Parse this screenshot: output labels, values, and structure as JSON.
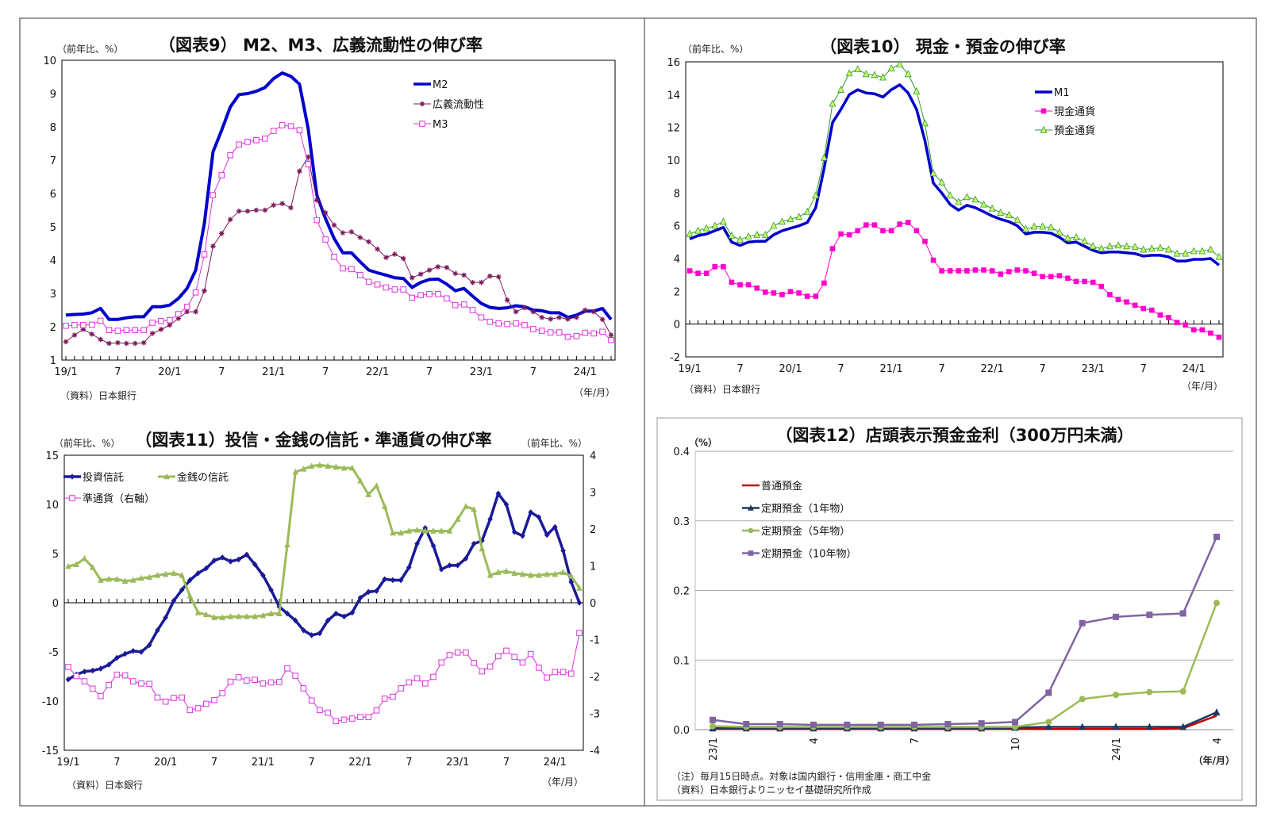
{
  "chart_data": [
    {
      "type": "line",
      "title": "（図表9） M2、M3、広義流動性の伸び率",
      "ylabel": "（前年比、%）",
      "xlabel": "（年/月）",
      "source": "（資料）日本銀行",
      "frequency": "monthly",
      "x_range": [
        "19/1",
        "24/4"
      ],
      "x_tick_labels": [
        "19/1",
        "7",
        "20/1",
        "7",
        "21/1",
        "7",
        "22/1",
        "7",
        "23/1",
        "7",
        "24/1"
      ],
      "ylim": [
        1,
        10
      ],
      "y_ticks": [
        1,
        2,
        3,
        4,
        5,
        6,
        7,
        8,
        9,
        10
      ],
      "legend": "top-right",
      "series": [
        {
          "name": "M2",
          "color": "#0000cc",
          "marker": "none",
          "values": [
            2.35,
            2.37,
            2.38,
            2.42,
            2.55,
            2.22,
            2.22,
            2.27,
            2.3,
            2.3,
            2.6,
            2.6,
            2.65,
            2.85,
            3.15,
            3.7,
            5.1,
            7.25,
            7.9,
            8.6,
            8.97,
            9.0,
            9.07,
            9.18,
            9.45,
            9.62,
            9.52,
            9.28,
            7.95,
            5.95,
            5.25,
            4.65,
            4.22,
            4.22,
            3.95,
            3.7,
            3.62,
            3.55,
            3.47,
            3.45,
            3.18,
            3.33,
            3.42,
            3.43,
            3.28,
            3.08,
            3.15,
            2.92,
            2.7,
            2.58,
            2.55,
            2.57,
            2.63,
            2.6,
            2.5,
            2.48,
            2.42,
            2.42,
            2.28,
            2.35,
            2.47,
            2.47,
            2.55,
            2.22
          ]
        },
        {
          "name": "広義流動性",
          "color": "#7a1a5c",
          "marker": "star",
          "values": [
            1.55,
            1.75,
            1.92,
            1.78,
            1.62,
            1.5,
            1.52,
            1.5,
            1.5,
            1.52,
            1.8,
            1.92,
            2.05,
            2.25,
            2.45,
            2.45,
            3.08,
            4.42,
            4.8,
            5.22,
            5.47,
            5.47,
            5.5,
            5.5,
            5.65,
            5.7,
            5.57,
            6.67,
            7.1,
            5.8,
            5.42,
            5.05,
            4.82,
            4.85,
            4.68,
            4.55,
            4.33,
            4.08,
            4.18,
            4.05,
            3.47,
            3.58,
            3.7,
            3.8,
            3.78,
            3.6,
            3.55,
            3.33,
            3.33,
            3.52,
            3.5,
            2.8,
            2.45,
            2.57,
            2.45,
            2.28,
            2.23,
            2.28,
            2.23,
            2.28,
            2.5,
            2.45,
            2.22,
            1.75
          ]
        },
        {
          "name": "M3",
          "color": "#dd33dd",
          "marker": "square-open",
          "values": [
            2.03,
            2.05,
            2.05,
            2.06,
            2.18,
            1.9,
            1.88,
            1.9,
            1.9,
            1.9,
            2.12,
            2.17,
            2.2,
            2.38,
            2.6,
            3.03,
            4.17,
            5.95,
            6.55,
            7.15,
            7.47,
            7.55,
            7.6,
            7.65,
            7.88,
            8.05,
            8.02,
            7.9,
            6.88,
            5.2,
            4.62,
            4.1,
            3.75,
            3.73,
            3.55,
            3.35,
            3.27,
            3.18,
            3.12,
            3.12,
            2.87,
            2.95,
            2.98,
            2.98,
            2.85,
            2.65,
            2.67,
            2.5,
            2.28,
            2.15,
            2.1,
            2.08,
            2.1,
            2.05,
            1.93,
            1.88,
            1.83,
            1.83,
            1.7,
            1.72,
            1.82,
            1.8,
            1.85,
            1.6
          ]
        }
      ]
    },
    {
      "type": "line",
      "title": "（図表10） 現金・預金の伸び率",
      "ylabel": "（前年比、%）",
      "xlabel": "（年/月）",
      "source": "（資料）日本銀行",
      "frequency": "monthly",
      "x_range": [
        "19/1",
        "24/4"
      ],
      "x_tick_labels": [
        "19/1",
        "7",
        "20/1",
        "7",
        "21/1",
        "7",
        "22/1",
        "7",
        "23/1",
        "7",
        "24/1"
      ],
      "ylim": [
        -2,
        16
      ],
      "y_ticks": [
        -2,
        0,
        2,
        4,
        6,
        8,
        10,
        12,
        14,
        16
      ],
      "legend": "top-right",
      "series": [
        {
          "name": "M1",
          "color": "#0000cc",
          "marker": "none",
          "values": [
            5.2,
            5.4,
            5.5,
            5.7,
            5.9,
            5.0,
            4.8,
            5.0,
            5.05,
            5.05,
            5.45,
            5.7,
            5.85,
            6.0,
            6.2,
            7.1,
            9.5,
            12.3,
            13.1,
            14.0,
            14.3,
            14.1,
            14.05,
            13.85,
            14.3,
            14.6,
            14.1,
            13.1,
            11.2,
            8.6,
            8.0,
            7.3,
            6.95,
            7.25,
            7.1,
            6.85,
            6.6,
            6.4,
            6.25,
            6.0,
            5.5,
            5.6,
            5.6,
            5.55,
            5.3,
            4.95,
            5.0,
            4.75,
            4.5,
            4.35,
            4.4,
            4.4,
            4.35,
            4.3,
            4.15,
            4.2,
            4.2,
            4.1,
            3.85,
            3.85,
            3.95,
            3.95,
            4.0,
            3.6
          ]
        },
        {
          "name": "現金通貨",
          "color": "#ff00cc",
          "marker": "square",
          "values": [
            3.25,
            3.1,
            3.1,
            3.5,
            3.5,
            2.55,
            2.4,
            2.4,
            2.2,
            1.95,
            1.9,
            1.8,
            1.98,
            1.9,
            1.7,
            1.7,
            2.5,
            4.6,
            5.5,
            5.45,
            5.7,
            6.05,
            6.05,
            5.7,
            5.7,
            6.1,
            6.2,
            5.7,
            5.05,
            3.9,
            3.25,
            3.25,
            3.25,
            3.25,
            3.3,
            3.3,
            3.25,
            3.05,
            3.2,
            3.3,
            3.25,
            3.1,
            2.9,
            2.9,
            2.95,
            2.8,
            2.6,
            2.6,
            2.55,
            2.3,
            1.8,
            1.5,
            1.35,
            1.15,
            0.95,
            0.85,
            0.55,
            0.4,
            0.1,
            -0.05,
            -0.35,
            -0.35,
            -0.55,
            -0.8
          ]
        },
        {
          "name": "預金通貨",
          "color": "#339933",
          "marker": "triangle-open",
          "values": [
            5.5,
            5.7,
            5.85,
            6.0,
            6.25,
            5.4,
            5.15,
            5.35,
            5.45,
            5.45,
            6.0,
            6.25,
            6.4,
            6.55,
            6.85,
            7.85,
            10.15,
            13.45,
            14.3,
            15.3,
            15.55,
            15.25,
            15.2,
            15.05,
            15.6,
            15.85,
            15.25,
            14.2,
            12.25,
            9.2,
            8.65,
            7.85,
            7.45,
            7.75,
            7.6,
            7.3,
            7.05,
            6.8,
            6.65,
            6.35,
            5.8,
            5.95,
            5.95,
            5.9,
            5.6,
            5.25,
            5.3,
            5.05,
            4.75,
            4.6,
            4.75,
            4.8,
            4.75,
            4.7,
            4.55,
            4.6,
            4.65,
            4.55,
            4.3,
            4.3,
            4.45,
            4.45,
            4.55,
            4.1
          ]
        }
      ]
    },
    {
      "type": "line",
      "title": "（図表11）投信・金銭の信託・準通貨の伸び率",
      "ylabel": "（前年比、%）",
      "ylabel_right": "（前年比、%）",
      "xlabel": "（年/月）",
      "source": "（資料）日本銀行",
      "frequency": "monthly",
      "x_range": [
        "19/1",
        "24/4"
      ],
      "x_tick_labels": [
        "19/1",
        "7",
        "20/1",
        "7",
        "21/1",
        "7",
        "22/1",
        "7",
        "23/1",
        "7",
        "24/1"
      ],
      "ylim": [
        -15,
        15
      ],
      "y_ticks": [
        -15,
        -10,
        -5,
        0,
        5,
        10,
        15
      ],
      "ylim_right": [
        -4,
        4
      ],
      "y_ticks_right": [
        -4,
        -3,
        -2,
        -1,
        0,
        1,
        2,
        3,
        4
      ],
      "negative_tick_color": "#cc0000",
      "legend": "top-left",
      "series": [
        {
          "name": "投資信託",
          "color": "#1a1a99",
          "marker": "diamond",
          "axis": "left",
          "values": [
            -7.8,
            -7.3,
            -7.0,
            -6.9,
            -6.7,
            -6.3,
            -5.6,
            -5.2,
            -4.9,
            -5.0,
            -4.3,
            -2.8,
            -1.5,
            0.2,
            1.3,
            2.3,
            3.0,
            3.5,
            4.3,
            4.6,
            4.2,
            4.4,
            4.9,
            3.9,
            2.8,
            1.3,
            -0.4,
            -1.1,
            -1.8,
            -2.8,
            -3.3,
            -3.1,
            -1.8,
            -1.1,
            -1.4,
            -1.0,
            0.5,
            1.1,
            1.2,
            2.4,
            2.3,
            2.3,
            3.6,
            6.0,
            7.6,
            5.8,
            3.4,
            3.8,
            3.8,
            4.5,
            6.0,
            6.3,
            8.5,
            11.1,
            10.0,
            7.2,
            6.8,
            9.2,
            8.7,
            6.9,
            7.7,
            5.3,
            2.1,
            0.0
          ]
        },
        {
          "name": "金銭の信託",
          "color": "#9bbb59",
          "marker": "triangle",
          "axis": "left",
          "values": [
            3.7,
            3.9,
            4.5,
            3.6,
            2.3,
            2.4,
            2.4,
            2.2,
            2.3,
            2.5,
            2.6,
            2.8,
            2.9,
            3.0,
            2.8,
            0.7,
            -1.0,
            -1.2,
            -1.5,
            -1.5,
            -1.4,
            -1.4,
            -1.4,
            -1.4,
            -1.3,
            -1.1,
            -1.1,
            5.9,
            13.3,
            13.6,
            13.9,
            14.0,
            13.9,
            13.8,
            13.7,
            13.7,
            12.4,
            11.0,
            11.9,
            9.8,
            7.1,
            7.1,
            7.3,
            7.4,
            7.3,
            7.3,
            7.3,
            7.3,
            8.5,
            9.8,
            9.5,
            5.5,
            2.8,
            3.1,
            3.2,
            3.0,
            2.9,
            2.8,
            2.8,
            2.9,
            2.9,
            3.1,
            2.7,
            1.5
          ]
        },
        {
          "name": "準通貨（右軸）",
          "color": "#dd33dd",
          "marker": "square-open",
          "axis": "right",
          "values": [
            -1.74,
            -1.99,
            -2.13,
            -2.33,
            -2.53,
            -2.23,
            -1.95,
            -1.97,
            -2.13,
            -2.19,
            -2.2,
            -2.57,
            -2.68,
            -2.58,
            -2.57,
            -2.91,
            -2.86,
            -2.74,
            -2.64,
            -2.45,
            -2.14,
            -2.02,
            -2.11,
            -2.09,
            -2.19,
            -2.16,
            -2.15,
            -1.78,
            -1.98,
            -2.32,
            -2.65,
            -2.91,
            -2.98,
            -3.21,
            -3.17,
            -3.14,
            -3.1,
            -3.1,
            -2.92,
            -2.6,
            -2.55,
            -2.32,
            -2.16,
            -2.05,
            -2.19,
            -2.01,
            -1.62,
            -1.42,
            -1.35,
            -1.35,
            -1.63,
            -1.86,
            -1.73,
            -1.45,
            -1.3,
            -1.47,
            -1.62,
            -1.39,
            -1.76,
            -2.03,
            -1.88,
            -1.88,
            -1.92,
            -0.82
          ]
        }
      ]
    },
    {
      "type": "line",
      "title": "（図表12）店頭表示預金金利（300万円未満）",
      "ylabel": "（%）",
      "xlabel": "（年/月）",
      "notes": [
        "（注）毎月15日時点。対象は国内銀行・信用金庫・商工中金",
        "（資料）日本銀行よりニッセイ基礎研究所作成"
      ],
      "frequency": "monthly",
      "x_range": [
        "23/1",
        "24/4"
      ],
      "x_tick_labels": [
        "23/1",
        "4",
        "7",
        "10",
        "24/1",
        "4"
      ],
      "ylim": [
        0,
        0.4
      ],
      "y_ticks": [
        0.0,
        0.1,
        0.2,
        0.3,
        0.4
      ],
      "grid": true,
      "legend": "top-left",
      "series": [
        {
          "name": "普通預金",
          "color": "#c00000",
          "marker": "none",
          "values": [
            0.001,
            0.001,
            0.001,
            0.001,
            0.001,
            0.001,
            0.001,
            0.001,
            0.001,
            0.001,
            0.001,
            0.001,
            0.001,
            0.001,
            0.002,
            0.02
          ]
        },
        {
          "name": "定期預金（1年物）",
          "color": "#1f3864",
          "marker": "triangle",
          "values": [
            0.002,
            0.002,
            0.002,
            0.002,
            0.002,
            0.002,
            0.002,
            0.002,
            0.002,
            0.003,
            0.004,
            0.004,
            0.004,
            0.004,
            0.004,
            0.025
          ]
        },
        {
          "name": "定期預金（5年物）",
          "color": "#9bbb59",
          "marker": "circle",
          "values": [
            0.005,
            0.004,
            0.004,
            0.004,
            0.004,
            0.004,
            0.004,
            0.004,
            0.004,
            0.004,
            0.011,
            0.044,
            0.05,
            0.054,
            0.055,
            0.182
          ]
        },
        {
          "name": "定期預金（10年物）",
          "color": "#8064a2",
          "marker": "square",
          "values": [
            0.014,
            0.008,
            0.008,
            0.007,
            0.007,
            0.007,
            0.007,
            0.008,
            0.009,
            0.011,
            0.053,
            0.153,
            0.162,
            0.165,
            0.167,
            0.277
          ]
        }
      ]
    }
  ]
}
